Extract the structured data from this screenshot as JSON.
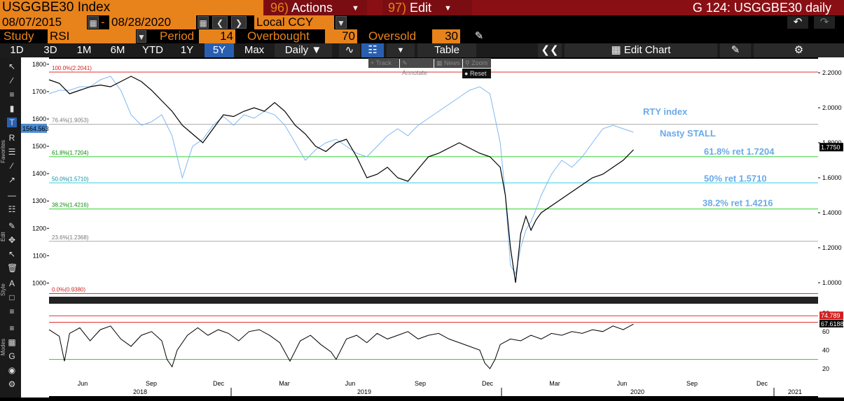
{
  "header": {
    "ticker": "USGGBE30 Index",
    "actions_num": "96)",
    "actions_label": "Actions",
    "edit_num": "97)",
    "edit_label": "Edit",
    "title": "G 124: USGGBE30 daily"
  },
  "controls": {
    "start_date": "08/07/2015",
    "dash": "-",
    "end_date": "08/28/2020",
    "currency": "Local CCY",
    "study_label": "Study",
    "study_value": "RSI",
    "period_label": "Period",
    "period_value": "14",
    "overbought_label": "Overbought",
    "overbought_value": "70",
    "oversold_label": "Oversold",
    "oversold_value": "30"
  },
  "range_buttons": [
    "1D",
    "3D",
    "1M",
    "6M",
    "YTD",
    "1Y",
    "5Y",
    "Max"
  ],
  "selected_range": "5Y",
  "frequency": "Daily",
  "table_label": "Table",
  "edit_chart_label": "Edit Chart",
  "left_toolbar": {
    "favorites_label": "Favorites",
    "edit_label": "Edit",
    "style_label": "Style",
    "modes_label": "Modes"
  },
  "overlay_toolbar": {
    "track": "Track",
    "annotate": "Annotate",
    "news": "News",
    "zoom": "Zoom",
    "reset": "Reset"
  },
  "colors": {
    "orange": "#e8821a",
    "header_red": "#8a0f14",
    "selected_blue": "#2a5fb0",
    "price_line": "#000000",
    "rty_line": "#7fb8f0",
    "annotation_blue": "#6aaae8"
  },
  "chart_data": {
    "type": "line",
    "left_axis": {
      "range": [
        950,
        1820
      ],
      "ticks": [
        1000,
        1100,
        1200,
        1300,
        1400,
        1500,
        1600,
        1700,
        1800
      ]
    },
    "right_axis": {
      "range": [
        0.92,
        2.28
      ],
      "ticks": [
        "1.0000",
        "1.2000",
        "1.4000",
        "1.6000",
        "1.8000",
        "2.0000",
        "2.2000"
      ]
    },
    "last_left_label": "1564.563",
    "last_right_label": "1.7750",
    "fib_levels": [
      {
        "label": "100.0%(2.2041)",
        "value": 2.2041,
        "color": "#e03030"
      },
      {
        "label": "76.4%(1.9053)",
        "value": 1.9053,
        "color": "#aaaaaa"
      },
      {
        "label": "61.8%(1.7204)",
        "value": 1.7204,
        "color": "#30d030"
      },
      {
        "label": "50.0%(1.5710)",
        "value": 1.571,
        "color": "#30d0e0"
      },
      {
        "label": "38.2%(1.4216)",
        "value": 1.4216,
        "color": "#30d030"
      },
      {
        "label": "23.6%(1.2368)",
        "value": 1.2368,
        "color": "#aaaaaa"
      },
      {
        "label": "0.0%(0.9380)",
        "value": 0.938,
        "color": "#e03030"
      }
    ],
    "annotations": [
      {
        "text": "RTY index",
        "at": "2020-06"
      },
      {
        "text": "Nasty STALL",
        "at": "2020-06"
      },
      {
        "text": "61.8% ret 1.7204",
        "value": 1.7204
      },
      {
        "text": "50% ret 1.5710",
        "value": 1.571
      },
      {
        "text": "38.2% ret 1.4216",
        "value": 1.4216
      }
    ],
    "x_ticks": [
      "Jun",
      "Sep",
      "Dec",
      "Mar",
      "Jun",
      "Sep",
      "Dec",
      "Mar",
      "Jun",
      "Sep",
      "Dec"
    ],
    "x_years": [
      "2018",
      "2019",
      "2020",
      "2021"
    ],
    "breakeven_series": {
      "name": "USGGBE30",
      "points": [
        [
          0,
          2.16
        ],
        [
          4,
          2.14
        ],
        [
          8,
          2.08
        ],
        [
          12,
          2.1
        ],
        [
          16,
          2.12
        ],
        [
          20,
          2.13
        ],
        [
          24,
          2.12
        ],
        [
          28,
          2.15
        ],
        [
          32,
          2.18
        ],
        [
          36,
          2.15
        ],
        [
          40,
          2.1
        ],
        [
          44,
          2.04
        ],
        [
          48,
          1.98
        ],
        [
          52,
          1.9
        ],
        [
          56,
          1.85
        ],
        [
          60,
          1.8
        ],
        [
          64,
          1.88
        ],
        [
          68,
          1.96
        ],
        [
          72,
          1.95
        ],
        [
          76,
          1.98
        ],
        [
          80,
          2.0
        ],
        [
          84,
          1.98
        ],
        [
          88,
          2.03
        ],
        [
          92,
          1.98
        ],
        [
          96,
          1.9
        ],
        [
          100,
          1.85
        ],
        [
          104,
          1.78
        ],
        [
          108,
          1.75
        ],
        [
          112,
          1.8
        ],
        [
          116,
          1.82
        ],
        [
          120,
          1.72
        ],
        [
          124,
          1.6
        ],
        [
          128,
          1.62
        ],
        [
          132,
          1.66
        ],
        [
          136,
          1.6
        ],
        [
          140,
          1.58
        ],
        [
          144,
          1.65
        ],
        [
          148,
          1.72
        ],
        [
          152,
          1.74
        ],
        [
          156,
          1.77
        ],
        [
          160,
          1.8
        ],
        [
          164,
          1.77
        ],
        [
          168,
          1.74
        ],
        [
          172,
          1.72
        ],
        [
          176,
          1.66
        ],
        [
          178,
          1.5
        ],
        [
          180,
          1.2
        ],
        [
          182,
          1.0
        ],
        [
          184,
          1.28
        ],
        [
          186,
          1.38
        ],
        [
          188,
          1.3
        ],
        [
          190,
          1.36
        ],
        [
          192,
          1.4
        ],
        [
          196,
          1.44
        ],
        [
          200,
          1.48
        ],
        [
          204,
          1.52
        ],
        [
          208,
          1.56
        ],
        [
          212,
          1.6
        ],
        [
          216,
          1.62
        ],
        [
          220,
          1.66
        ],
        [
          224,
          1.7
        ],
        [
          228,
          1.76
        ]
      ]
    },
    "rty_series": {
      "name": "RTY index",
      "points": [
        [
          0,
          2.08
        ],
        [
          4,
          2.1
        ],
        [
          8,
          2.1
        ],
        [
          12,
          2.12
        ],
        [
          16,
          2.12
        ],
        [
          20,
          2.16
        ],
        [
          24,
          2.18
        ],
        [
          28,
          2.1
        ],
        [
          32,
          1.96
        ],
        [
          36,
          1.9
        ],
        [
          40,
          1.92
        ],
        [
          44,
          1.96
        ],
        [
          48,
          1.84
        ],
        [
          52,
          1.6
        ],
        [
          56,
          1.78
        ],
        [
          60,
          1.82
        ],
        [
          64,
          1.9
        ],
        [
          68,
          1.95
        ],
        [
          72,
          1.9
        ],
        [
          76,
          1.96
        ],
        [
          80,
          1.94
        ],
        [
          84,
          1.98
        ],
        [
          88,
          1.96
        ],
        [
          92,
          1.9
        ],
        [
          96,
          1.8
        ],
        [
          100,
          1.7
        ],
        [
          104,
          1.76
        ],
        [
          108,
          1.8
        ],
        [
          112,
          1.82
        ],
        [
          116,
          1.78
        ],
        [
          120,
          1.74
        ],
        [
          124,
          1.72
        ],
        [
          128,
          1.78
        ],
        [
          132,
          1.84
        ],
        [
          136,
          1.88
        ],
        [
          140,
          1.84
        ],
        [
          144,
          1.9
        ],
        [
          148,
          1.94
        ],
        [
          152,
          1.98
        ],
        [
          156,
          2.02
        ],
        [
          160,
          2.06
        ],
        [
          164,
          2.1
        ],
        [
          168,
          2.12
        ],
        [
          172,
          2.08
        ],
        [
          176,
          1.8
        ],
        [
          178,
          1.5
        ],
        [
          180,
          1.1
        ],
        [
          182,
          1.05
        ],
        [
          184,
          1.2
        ],
        [
          186,
          1.3
        ],
        [
          188,
          1.35
        ],
        [
          190,
          1.42
        ],
        [
          192,
          1.5
        ],
        [
          196,
          1.62
        ],
        [
          200,
          1.7
        ],
        [
          204,
          1.66
        ],
        [
          208,
          1.72
        ],
        [
          212,
          1.8
        ],
        [
          216,
          1.88
        ],
        [
          220,
          1.9
        ],
        [
          224,
          1.88
        ],
        [
          228,
          1.86
        ]
      ]
    },
    "rsi": {
      "range": [
        10,
        90
      ],
      "ticks": [
        20,
        40,
        60,
        80
      ],
      "overbought": 70,
      "oversold": 30,
      "last_labels": [
        "74.789",
        "67.6188"
      ],
      "points": [
        [
          0,
          62
        ],
        [
          4,
          55
        ],
        [
          6,
          28
        ],
        [
          8,
          58
        ],
        [
          12,
          64
        ],
        [
          16,
          50
        ],
        [
          20,
          62
        ],
        [
          24,
          66
        ],
        [
          28,
          52
        ],
        [
          32,
          44
        ],
        [
          36,
          56
        ],
        [
          40,
          60
        ],
        [
          44,
          50
        ],
        [
          46,
          30
        ],
        [
          48,
          22
        ],
        [
          50,
          40
        ],
        [
          54,
          56
        ],
        [
          58,
          64
        ],
        [
          62,
          56
        ],
        [
          66,
          62
        ],
        [
          70,
          58
        ],
        [
          74,
          50
        ],
        [
          78,
          60
        ],
        [
          82,
          62
        ],
        [
          86,
          56
        ],
        [
          90,
          48
        ],
        [
          94,
          28
        ],
        [
          98,
          50
        ],
        [
          102,
          56
        ],
        [
          106,
          46
        ],
        [
          110,
          38
        ],
        [
          112,
          30
        ],
        [
          116,
          52
        ],
        [
          120,
          56
        ],
        [
          124,
          48
        ],
        [
          128,
          58
        ],
        [
          132,
          52
        ],
        [
          136,
          56
        ],
        [
          140,
          60
        ],
        [
          144,
          52
        ],
        [
          148,
          56
        ],
        [
          152,
          58
        ],
        [
          156,
          52
        ],
        [
          160,
          48
        ],
        [
          164,
          44
        ],
        [
          168,
          40
        ],
        [
          170,
          26
        ],
        [
          172,
          20
        ],
        [
          174,
          30
        ],
        [
          176,
          46
        ],
        [
          180,
          52
        ],
        [
          184,
          50
        ],
        [
          188,
          56
        ],
        [
          192,
          52
        ],
        [
          196,
          58
        ],
        [
          200,
          56
        ],
        [
          204,
          60
        ],
        [
          208,
          58
        ],
        [
          212,
          62
        ],
        [
          216,
          60
        ],
        [
          220,
          66
        ],
        [
          224,
          62
        ],
        [
          228,
          68
        ]
      ]
    }
  }
}
